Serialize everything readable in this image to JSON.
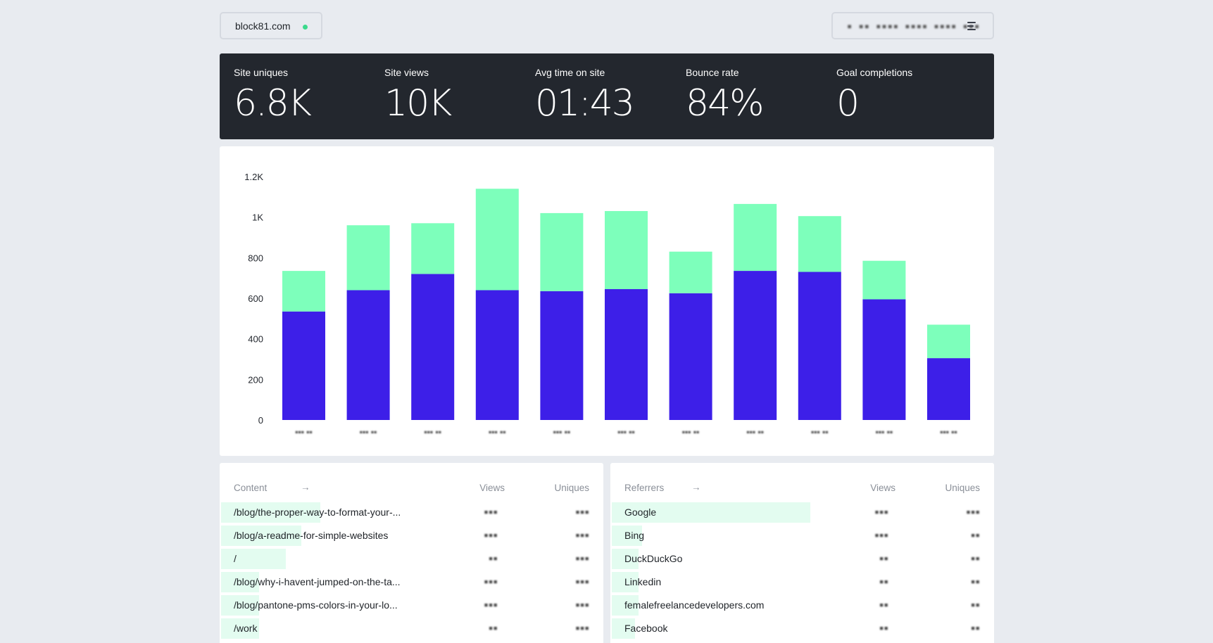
{
  "site": {
    "name": "block81.com",
    "live_color": "#3bd98c"
  },
  "date_range": {
    "label": "▪ ▪▪ ▪▪▪▪ ▪▪▪▪ ▪▪▪▪ ▪▪▪"
  },
  "stats": [
    {
      "label": "Site uniques",
      "value": "6.8K"
    },
    {
      "label": "Site views",
      "value": "10K"
    },
    {
      "label": "Avg time on site",
      "value": "01:43"
    },
    {
      "label": "Bounce rate",
      "value": "84%"
    },
    {
      "label": "Goal completions",
      "value": "0"
    }
  ],
  "chart_data": {
    "type": "bar",
    "stacked": true,
    "categories": [
      "▪▪▪ ▪▪",
      "▪▪▪ ▪▪",
      "▪▪▪ ▪▪",
      "▪▪▪ ▪▪",
      "▪▪▪ ▪▪",
      "▪▪▪ ▪▪",
      "▪▪▪ ▪▪",
      "▪▪▪ ▪▪",
      "▪▪▪ ▪▪",
      "▪▪▪ ▪▪",
      "▪▪▪ ▪▪"
    ],
    "series": [
      {
        "color": "#3d1fe8",
        "values": [
          535,
          640,
          720,
          640,
          635,
          645,
          625,
          735,
          730,
          595,
          305
        ]
      },
      {
        "color": "#7dffbb",
        "values": [
          200,
          320,
          250,
          500,
          385,
          385,
          205,
          330,
          275,
          190,
          165
        ]
      }
    ],
    "yticks": [
      "0",
      "200",
      "400",
      "600",
      "800",
      "1K",
      "1.2K"
    ],
    "ylim": [
      0,
      1200
    ],
    "grid": false
  },
  "content": {
    "title": "Content",
    "arrow": "→",
    "views_header": "Views",
    "uniques_header": "Uniques",
    "rows": [
      {
        "label": "/blog/the-proper-way-to-format-your-...",
        "views": "▪▪▪",
        "uniques": "▪▪▪",
        "share": 0.26
      },
      {
        "label": "/blog/a-readme-for-simple-websites",
        "views": "▪▪▪",
        "uniques": "▪▪▪",
        "share": 0.21
      },
      {
        "label": "/",
        "views": "▪▪",
        "uniques": "▪▪▪",
        "share": 0.17
      },
      {
        "label": "/blog/why-i-havent-jumped-on-the-ta...",
        "views": "▪▪▪",
        "uniques": "▪▪▪",
        "share": 0.1
      },
      {
        "label": "/blog/pantone-pms-colors-in-your-lo...",
        "views": "▪▪▪",
        "uniques": "▪▪▪",
        "share": 0.1
      },
      {
        "label": "/work",
        "views": "▪▪",
        "uniques": "▪▪▪",
        "share": 0.1
      }
    ]
  },
  "referrers": {
    "title": "Referrers",
    "arrow": "→",
    "views_header": "Views",
    "uniques_header": "Uniques",
    "rows": [
      {
        "label": "Google",
        "views": "▪▪▪",
        "uniques": "▪▪▪",
        "share": 0.52
      },
      {
        "label": "Bing",
        "views": "▪▪▪",
        "uniques": "▪▪",
        "share": 0.08
      },
      {
        "label": "DuckDuckGo",
        "views": "▪▪",
        "uniques": "▪▪",
        "share": 0.07
      },
      {
        "label": "Linkedin",
        "views": "▪▪",
        "uniques": "▪▪",
        "share": 0.07
      },
      {
        "label": "femalefreelancedevelopers.com",
        "views": "▪▪",
        "uniques": "▪▪",
        "share": 0.07
      },
      {
        "label": "Facebook",
        "views": "▪▪",
        "uniques": "▪▪",
        "share": 0.06
      }
    ]
  }
}
